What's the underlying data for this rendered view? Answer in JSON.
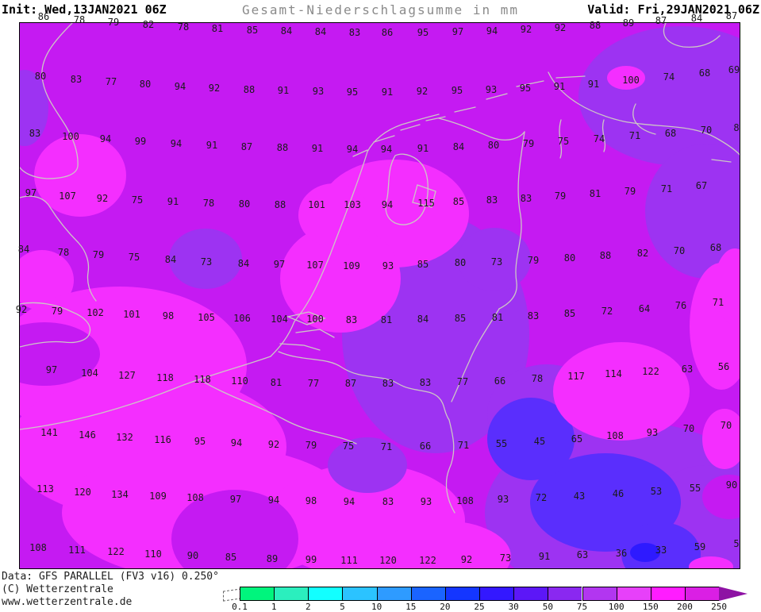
{
  "header": {
    "init_label": "Init: Wed,13JAN2021 06Z",
    "title": "Gesamt-Niederschlagsumme in mm",
    "valid_label": "Valid: Fri,29JAN2021 06Z"
  },
  "footer": {
    "data_source": "Data: GFS PARALLEL (FV3 v16) 0.250°",
    "copyright": "(C) Wetterzentrale",
    "website": "www.wetterzentrale.de"
  },
  "legend": {
    "tick_labels": [
      "0.1",
      "1",
      "2",
      "5",
      "10",
      "15",
      "20",
      "25",
      "30",
      "50",
      "75",
      "100",
      "150",
      "200",
      "250"
    ],
    "segment_colors": [
      "#00f57d",
      "#2befbe",
      "#12ffff",
      "#2bc3ff",
      "#2e9bff",
      "#1a64ff",
      "#1436ff",
      "#3318ff",
      "#5c17f7",
      "#8a28f0",
      "#b236f0",
      "#e740fa",
      "#ff1cff",
      "#da1fe4"
    ],
    "arrow_color": "#8e12a4"
  },
  "map": {
    "frame_color": "#000000",
    "coastline_color": "#cdc6c6",
    "number_color": "#1a1a1a",
    "fill_colors": {
      "bin_75_100": "#c51af2",
      "bin_100_150": "#f42eff",
      "bin_50_75": "#9d33f2",
      "bin_30_50": "#5a2efd",
      "bin_25_30": "#2e1aff"
    },
    "values": [
      [
        86,
        55,
        21
      ],
      [
        78,
        100,
        25
      ],
      [
        79,
        143,
        28
      ],
      [
        82,
        187,
        31
      ],
      [
        78,
        231,
        34
      ],
      [
        81,
        274,
        36
      ],
      [
        85,
        318,
        38
      ],
      [
        84,
        361,
        39
      ],
      [
        84,
        404,
        40
      ],
      [
        83,
        447,
        41
      ],
      [
        86,
        488,
        41
      ],
      [
        95,
        533,
        41
      ],
      [
        97,
        577,
        40
      ],
      [
        94,
        620,
        39
      ],
      [
        92,
        663,
        37
      ],
      [
        92,
        706,
        35
      ],
      [
        88,
        750,
        32
      ],
      [
        89,
        792,
        29
      ],
      [
        87,
        833,
        26
      ],
      [
        84,
        878,
        23
      ],
      [
        87,
        922,
        20
      ],
      [
        80,
        51,
        96
      ],
      [
        83,
        96,
        100
      ],
      [
        77,
        140,
        103
      ],
      [
        80,
        183,
        106
      ],
      [
        94,
        227,
        109
      ],
      [
        92,
        270,
        111
      ],
      [
        88,
        314,
        113
      ],
      [
        91,
        357,
        114
      ],
      [
        93,
        401,
        115
      ],
      [
        95,
        444,
        116
      ],
      [
        91,
        488,
        116
      ],
      [
        92,
        532,
        115
      ],
      [
        95,
        576,
        114
      ],
      [
        93,
        619,
        113
      ],
      [
        95,
        662,
        111
      ],
      [
        91,
        705,
        109
      ],
      [
        91,
        748,
        106
      ],
      [
        100,
        795,
        101
      ],
      [
        74,
        843,
        97
      ],
      [
        68,
        888,
        92
      ],
      [
        69,
        925,
        88
      ],
      [
        83,
        44,
        168
      ],
      [
        100,
        89,
        172
      ],
      [
        94,
        133,
        175
      ],
      [
        99,
        177,
        178
      ],
      [
        94,
        222,
        181
      ],
      [
        91,
        267,
        183
      ],
      [
        87,
        311,
        185
      ],
      [
        88,
        356,
        186
      ],
      [
        91,
        400,
        187
      ],
      [
        94,
        444,
        188
      ],
      [
        94,
        487,
        188
      ],
      [
        91,
        533,
        187
      ],
      [
        84,
        578,
        185
      ],
      [
        80,
        622,
        183
      ],
      [
        79,
        666,
        181
      ],
      [
        75,
        710,
        178
      ],
      [
        74,
        755,
        175
      ],
      [
        71,
        800,
        171
      ],
      [
        68,
        845,
        168
      ],
      [
        70,
        890,
        164
      ],
      [
        8,
        928,
        161
      ],
      [
        97,
        39,
        243
      ],
      [
        107,
        85,
        247
      ],
      [
        92,
        129,
        250
      ],
      [
        75,
        173,
        252
      ],
      [
        91,
        218,
        254
      ],
      [
        78,
        263,
        256
      ],
      [
        80,
        308,
        257
      ],
      [
        88,
        353,
        258
      ],
      [
        101,
        399,
        258
      ],
      [
        103,
        444,
        258
      ],
      [
        94,
        488,
        258
      ],
      [
        115,
        537,
        256
      ],
      [
        85,
        578,
        254
      ],
      [
        83,
        620,
        252
      ],
      [
        83,
        663,
        250
      ],
      [
        79,
        706,
        247
      ],
      [
        81,
        750,
        244
      ],
      [
        79,
        794,
        241
      ],
      [
        71,
        840,
        238
      ],
      [
        67,
        884,
        234
      ],
      [
        84,
        30,
        314
      ],
      [
        78,
        80,
        318
      ],
      [
        79,
        124,
        321
      ],
      [
        75,
        169,
        324
      ],
      [
        84,
        215,
        327
      ],
      [
        73,
        260,
        330
      ],
      [
        84,
        307,
        332
      ],
      [
        97,
        352,
        333
      ],
      [
        107,
        397,
        334
      ],
      [
        109,
        443,
        335
      ],
      [
        93,
        489,
        335
      ],
      [
        85,
        533,
        333
      ],
      [
        80,
        580,
        331
      ],
      [
        73,
        626,
        330
      ],
      [
        79,
        672,
        328
      ],
      [
        80,
        718,
        325
      ],
      [
        88,
        763,
        322
      ],
      [
        82,
        810,
        319
      ],
      [
        70,
        856,
        316
      ],
      [
        68,
        902,
        312
      ],
      [
        92,
        27,
        390
      ],
      [
        79,
        72,
        392
      ],
      [
        102,
        120,
        394
      ],
      [
        101,
        166,
        396
      ],
      [
        98,
        212,
        398
      ],
      [
        105,
        260,
        400
      ],
      [
        106,
        305,
        401
      ],
      [
        104,
        352,
        402
      ],
      [
        100,
        397,
        402
      ],
      [
        83,
        443,
        403
      ],
      [
        81,
        487,
        403
      ],
      [
        84,
        533,
        402
      ],
      [
        85,
        580,
        401
      ],
      [
        81,
        627,
        400
      ],
      [
        83,
        672,
        398
      ],
      [
        85,
        718,
        395
      ],
      [
        72,
        765,
        392
      ],
      [
        64,
        812,
        389
      ],
      [
        76,
        858,
        385
      ],
      [
        71,
        905,
        381
      ],
      [
        97,
        65,
        466
      ],
      [
        104,
        113,
        470
      ],
      [
        127,
        160,
        473
      ],
      [
        118,
        208,
        476
      ],
      [
        118,
        255,
        478
      ],
      [
        110,
        302,
        480
      ],
      [
        81,
        348,
        482
      ],
      [
        77,
        395,
        483
      ],
      [
        87,
        442,
        483
      ],
      [
        83,
        489,
        483
      ],
      [
        83,
        536,
        482
      ],
      [
        77,
        583,
        481
      ],
      [
        66,
        630,
        480
      ],
      [
        78,
        677,
        477
      ],
      [
        117,
        726,
        474
      ],
      [
        114,
        773,
        471
      ],
      [
        122,
        820,
        468
      ],
      [
        63,
        866,
        465
      ],
      [
        56,
        912,
        462
      ],
      [
        141,
        62,
        545
      ],
      [
        146,
        110,
        548
      ],
      [
        132,
        157,
        551
      ],
      [
        116,
        205,
        554
      ],
      [
        95,
        252,
        556
      ],
      [
        94,
        298,
        558
      ],
      [
        92,
        345,
        560
      ],
      [
        79,
        392,
        561
      ],
      [
        75,
        439,
        562
      ],
      [
        71,
        487,
        563
      ],
      [
        66,
        536,
        562
      ],
      [
        71,
        584,
        561
      ],
      [
        55,
        632,
        559
      ],
      [
        45,
        680,
        556
      ],
      [
        65,
        727,
        553
      ],
      [
        108,
        775,
        549
      ],
      [
        93,
        822,
        545
      ],
      [
        70,
        868,
        540
      ],
      [
        70,
        915,
        536
      ],
      [
        113,
        57,
        616
      ],
      [
        120,
        104,
        620
      ],
      [
        134,
        151,
        623
      ],
      [
        109,
        199,
        625
      ],
      [
        108,
        246,
        627
      ],
      [
        97,
        297,
        629
      ],
      [
        94,
        345,
        630
      ],
      [
        98,
        392,
        631
      ],
      [
        94,
        440,
        632
      ],
      [
        83,
        489,
        632
      ],
      [
        93,
        537,
        632
      ],
      [
        108,
        586,
        631
      ],
      [
        93,
        634,
        629
      ],
      [
        72,
        682,
        627
      ],
      [
        43,
        730,
        625
      ],
      [
        46,
        779,
        622
      ],
      [
        53,
        827,
        619
      ],
      [
        55,
        876,
        615
      ],
      [
        90,
        922,
        611
      ],
      [
        108,
        48,
        690
      ],
      [
        111,
        97,
        693
      ],
      [
        122,
        146,
        695
      ],
      [
        110,
        193,
        698
      ],
      [
        90,
        243,
        700
      ],
      [
        85,
        291,
        702
      ],
      [
        89,
        343,
        704
      ],
      [
        99,
        392,
        705
      ],
      [
        111,
        440,
        706
      ],
      [
        120,
        489,
        706
      ],
      [
        122,
        539,
        706
      ],
      [
        92,
        588,
        705
      ],
      [
        73,
        637,
        703
      ],
      [
        91,
        686,
        701
      ],
      [
        63,
        734,
        699
      ],
      [
        36,
        783,
        697
      ],
      [
        33,
        833,
        693
      ],
      [
        59,
        882,
        689
      ],
      [
        5,
        928,
        685
      ]
    ]
  }
}
